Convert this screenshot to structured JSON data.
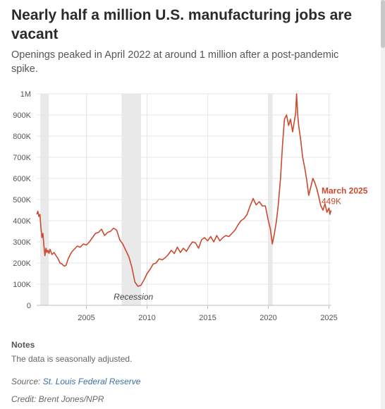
{
  "header": {
    "title": "Nearly half a million U.S. manufacturing jobs are vacant",
    "subtitle": "Openings peaked in April 2022 at around 1 million after a post-pandemic spike."
  },
  "chart_data": {
    "type": "line",
    "title": "",
    "xlabel": "",
    "ylabel": "",
    "xlim": [
      2000.9,
      2025.2
    ],
    "ylim": [
      0,
      1000000
    ],
    "grid": true,
    "y_ticks": [
      0,
      100000,
      200000,
      300000,
      400000,
      500000,
      600000,
      700000,
      800000,
      900000,
      1000000
    ],
    "y_tick_labels": [
      "0",
      "100K",
      "200K",
      "300K",
      "400K",
      "500K",
      "600K",
      "700K",
      "800K",
      "900K",
      "1M"
    ],
    "x_ticks": [
      2005,
      2010,
      2015,
      2020,
      2025
    ],
    "x_tick_labels": [
      "2005",
      "2010",
      "2015",
      "2020",
      "2025"
    ],
    "line_color": "#c94a2e",
    "recessions": [
      {
        "start": 2001.2,
        "end": 2001.9
      },
      {
        "start": 2007.9,
        "end": 2009.5
      },
      {
        "start": 2020.0,
        "end": 2020.35
      }
    ],
    "recession_label": "Recession",
    "end_label": {
      "period": "March 2025",
      "value": "449K"
    },
    "series": [
      {
        "x": [
          2000.92,
          2001.0,
          2001.08,
          2001.17,
          2001.25,
          2001.33,
          2001.42,
          2001.5,
          2001.58,
          2001.67,
          2001.75,
          2001.83,
          2001.92,
          2002.0,
          2002.17,
          2002.33,
          2002.5,
          2002.67,
          2002.83,
          2003.0,
          2003.17,
          2003.33,
          2003.5,
          2003.67,
          2003.83,
          2004.0,
          2004.25,
          2004.5,
          2004.75,
          2005.0,
          2005.25,
          2005.5,
          2005.75,
          2006.0,
          2006.25,
          2006.5,
          2006.75,
          2007.0,
          2007.25,
          2007.5,
          2007.75,
          2008.0,
          2008.25,
          2008.5,
          2008.75,
          2009.0,
          2009.25,
          2009.5,
          2009.75,
          2010.0,
          2010.25,
          2010.5,
          2010.75,
          2011.0,
          2011.25,
          2011.5,
          2011.75,
          2012.0,
          2012.25,
          2012.5,
          2012.75,
          2013.0,
          2013.25,
          2013.5,
          2013.75,
          2014.0,
          2014.25,
          2014.5,
          2014.75,
          2015.0,
          2015.25,
          2015.5,
          2015.75,
          2016.0,
          2016.25,
          2016.5,
          2016.75,
          2017.0,
          2017.25,
          2017.5,
          2017.75,
          2018.0,
          2018.25,
          2018.5,
          2018.75,
          2019.0,
          2019.25,
          2019.5,
          2019.75,
          2020.0,
          2020.17,
          2020.33,
          2020.5,
          2020.67,
          2020.83,
          2021.0,
          2021.17,
          2021.33,
          2021.5,
          2021.67,
          2021.83,
          2022.0,
          2022.17,
          2022.25,
          2022.33,
          2022.42,
          2022.5,
          2022.67,
          2022.83,
          2023.0,
          2023.17,
          2023.33,
          2023.5,
          2023.67,
          2023.83,
          2024.0,
          2024.17,
          2024.33,
          2024.5,
          2024.67,
          2024.83,
          2025.0,
          2025.08,
          2025.17
        ],
        "values": [
          430000,
          445000,
          420000,
          430000,
          370000,
          320000,
          340000,
          280000,
          235000,
          270000,
          250000,
          260000,
          245000,
          265000,
          240000,
          250000,
          235000,
          220000,
          200000,
          195000,
          185000,
          190000,
          220000,
          240000,
          255000,
          265000,
          280000,
          275000,
          290000,
          285000,
          300000,
          320000,
          340000,
          345000,
          360000,
          330000,
          345000,
          350000,
          365000,
          355000,
          310000,
          290000,
          260000,
          230000,
          180000,
          110000,
          90000,
          95000,
          120000,
          150000,
          170000,
          195000,
          200000,
          220000,
          215000,
          225000,
          240000,
          260000,
          245000,
          275000,
          250000,
          270000,
          255000,
          280000,
          300000,
          295000,
          270000,
          310000,
          320000,
          305000,
          325000,
          300000,
          330000,
          305000,
          320000,
          330000,
          325000,
          340000,
          355000,
          380000,
          400000,
          410000,
          430000,
          470000,
          505000,
          475000,
          490000,
          470000,
          470000,
          400000,
          360000,
          290000,
          340000,
          400000,
          480000,
          600000,
          760000,
          880000,
          900000,
          850000,
          880000,
          820000,
          880000,
          910000,
          1000000,
          900000,
          850000,
          780000,
          700000,
          650000,
          590000,
          520000,
          560000,
          600000,
          580000,
          550000,
          510000,
          470000,
          450000,
          480000,
          440000,
          460000,
          430000,
          449000
        ]
      }
    ]
  },
  "notes": {
    "heading": "Notes",
    "text": "The data is seasonally adjusted."
  },
  "source": {
    "prefix": "Source: ",
    "link_text": "St. Louis Federal Reserve"
  },
  "credit": "Credit: Brent Jones/NPR"
}
